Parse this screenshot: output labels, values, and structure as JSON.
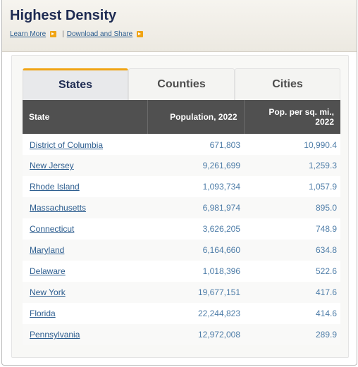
{
  "header": {
    "title": "Highest Density",
    "learn_more": "Learn More",
    "separator": "|",
    "download": "Download and Share"
  },
  "tabs": [
    {
      "label": "States",
      "active": true
    },
    {
      "label": "Counties",
      "active": false
    },
    {
      "label": "Cities",
      "active": false
    }
  ],
  "table": {
    "columns": [
      "State",
      "Population, 2022",
      "Pop. per sq. mi., 2022"
    ],
    "rows": [
      {
        "state": "District of Columbia",
        "population": "671,803",
        "density": "10,990.4"
      },
      {
        "state": "New Jersey",
        "population": "9,261,699",
        "density": "1,259.3"
      },
      {
        "state": "Rhode Island",
        "population": "1,093,734",
        "density": "1,057.9"
      },
      {
        "state": "Massachusetts",
        "population": "6,981,974",
        "density": "895.0"
      },
      {
        "state": "Connecticut",
        "population": "3,626,205",
        "density": "748.9"
      },
      {
        "state": "Maryland",
        "population": "6,164,660",
        "density": "634.8"
      },
      {
        "state": "Delaware",
        "population": "1,018,396",
        "density": "522.6"
      },
      {
        "state": "New York",
        "population": "19,677,151",
        "density": "417.6"
      },
      {
        "state": "Florida",
        "population": "22,244,823",
        "density": "414.6"
      },
      {
        "state": "Pennsylvania",
        "population": "12,972,008",
        "density": "289.9"
      }
    ]
  },
  "colors": {
    "title": "#1e2b52",
    "link": "#2c5d8f",
    "accent": "#f0a414",
    "table_header": "#505050",
    "numbers": "#4e7da8"
  }
}
